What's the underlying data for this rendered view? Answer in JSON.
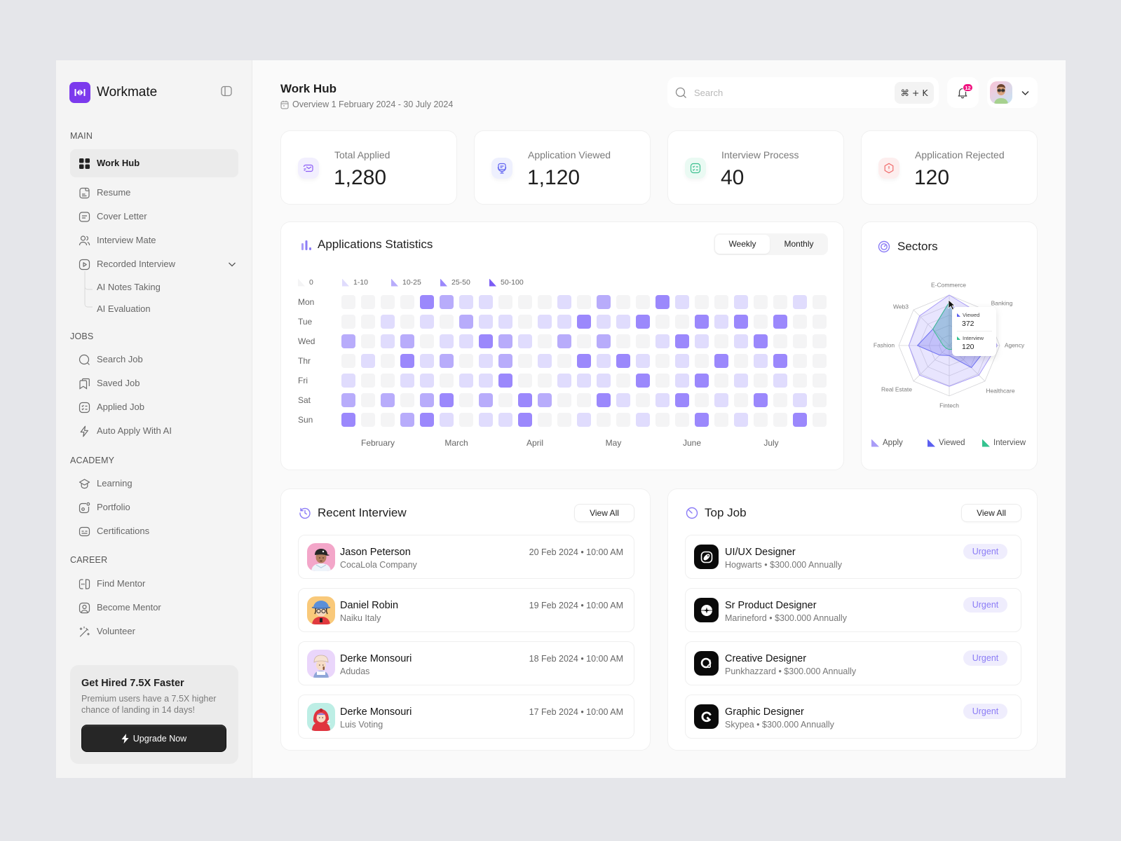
{
  "app": {
    "name": "Workmate"
  },
  "sidebar": {
    "sections": [
      {
        "title": "MAIN",
        "items": [
          {
            "label": "Work Hub",
            "icon": "grid-icon",
            "active": true
          },
          {
            "label": "Resume",
            "icon": "document-icon"
          },
          {
            "label": "Cover Letter",
            "icon": "letter-icon"
          },
          {
            "label": "Interview Mate",
            "icon": "users-icon"
          },
          {
            "label": "Recorded Interview",
            "icon": "play-icon",
            "expanded": true,
            "children": [
              {
                "label": "AI Notes Taking"
              },
              {
                "label": "AI Evaluation"
              }
            ]
          }
        ]
      },
      {
        "title": "JOBS",
        "items": [
          {
            "label": "Search Job",
            "icon": "search-icon"
          },
          {
            "label": "Saved Job",
            "icon": "bookmark-icon"
          },
          {
            "label": "Applied Job",
            "icon": "checklist-icon"
          },
          {
            "label": "Auto Apply With AI",
            "icon": "lightning-icon"
          }
        ]
      },
      {
        "title": "ACADEMY",
        "items": [
          {
            "label": "Learning",
            "icon": "graduation-cap-icon"
          },
          {
            "label": "Portfolio",
            "icon": "portfolio-icon"
          },
          {
            "label": "Certifications",
            "icon": "certificate-icon"
          }
        ]
      },
      {
        "title": "CAREER",
        "items": [
          {
            "label": "Find Mentor",
            "icon": "find-mentor-icon"
          },
          {
            "label": "Become Mentor",
            "icon": "user-square-icon"
          },
          {
            "label": "Volunteer",
            "icon": "magic-wand-icon"
          }
        ]
      }
    ]
  },
  "promo": {
    "title": "Get Hired 7.5X Faster",
    "body": "Premium users have a 7.5X higher chance of landing in 14 days!",
    "button": "Upgrade Now"
  },
  "header": {
    "title": "Work Hub",
    "subtitle": "Overview 1 February 2024 - 30 July 2024",
    "search_placeholder": "Search",
    "shortcut": "⌘ + K",
    "notifications_count": "12"
  },
  "stats": [
    {
      "label": "Total Applied",
      "value": "1,280",
      "icon": "envelope-icon",
      "color": "#8b5cf6",
      "bg": "#f2effe"
    },
    {
      "label": "Application Viewed",
      "value": "1,120",
      "icon": "monitor-icon",
      "color": "#6366f1",
      "bg": "#eef0fe"
    },
    {
      "label": "Interview Process",
      "value": "40",
      "icon": "checklist-icon",
      "color": "#3cbf8f",
      "bg": "#eafaf3"
    },
    {
      "label": "Application Rejected",
      "value": "120",
      "icon": "alert-hexagon-icon",
      "color": "#f06b6b",
      "bg": "#fdeeee"
    }
  ],
  "applications_statistics": {
    "title": "Applications Statistics",
    "tabs": [
      "Weekly",
      "Monthly"
    ],
    "active_tab": "Weekly",
    "legend": [
      "0",
      "1-10",
      "10-25",
      "25-50",
      "50-100"
    ],
    "level_colors": [
      "#f4f4f5",
      "#e0dcfd",
      "#b8acfb",
      "#9b88fc",
      "#7b5cf5"
    ],
    "days": [
      "Mon",
      "Tue",
      "Wed",
      "Thr",
      "Fri",
      "Sat",
      "Sun"
    ],
    "months": [
      "February",
      "March",
      "April",
      "May",
      "June",
      "July"
    ]
  },
  "sectors": {
    "title": "Sectors",
    "axes": [
      "E-Commerce",
      "Banking",
      "Agency",
      "Healthcare",
      "Fintech",
      "Real Estate",
      "Fashion",
      "Web3"
    ],
    "tooltip": {
      "rows": [
        {
          "label": "Viewed",
          "value": "372",
          "color": "#5b5ff0"
        },
        {
          "label": "Interview",
          "value": "120",
          "color": "#34c38f"
        }
      ]
    },
    "legend": [
      {
        "label": "Apply",
        "color": "#a99cf7"
      },
      {
        "label": "Viewed",
        "color": "#5b5ff0"
      },
      {
        "label": "Interview",
        "color": "#34c38f"
      }
    ],
    "series_fill": [
      "rgba(167,155,250,0.26)",
      "rgba(99,102,241,0.28)",
      "rgba(52,195,143,0.22)"
    ],
    "series_stroke": [
      "#a99cf7",
      "#6d6ff2",
      "#3cbf90"
    ]
  },
  "recent_interview": {
    "title": "Recent Interview",
    "view_all": "View All",
    "separator": " • ",
    "items": [
      {
        "name": "Jason Peterson",
        "company": "CocaLola Company",
        "date": "20 Feb 2024",
        "time": "10:00 AM"
      },
      {
        "name": "Daniel Robin",
        "company": "Naiku Italy",
        "date": "19 Feb 2024",
        "time": "10:00 AM"
      },
      {
        "name": "Derke Monsouri",
        "company": "Adudas",
        "date": "18 Feb 2024",
        "time": "10:00 AM"
      },
      {
        "name": "Derke Monsouri",
        "company": "Luis Voting",
        "date": "17 Feb 2024",
        "time": "10:00 AM"
      }
    ]
  },
  "top_job": {
    "title": "Top Job",
    "view_all": "View All",
    "separator": " • ",
    "items": [
      {
        "title": "UI/UX Designer",
        "company": "Hogwarts",
        "salary": "$300.000 Annually",
        "badge": "Urgent"
      },
      {
        "title": "Sr Product Designer",
        "company": "Marineford",
        "salary": "$300.000 Annually",
        "badge": "Urgent"
      },
      {
        "title": "Creative Designer",
        "company": "Punkhazzard",
        "salary": "$300.000 Annually",
        "badge": "Urgent"
      },
      {
        "title": "Graphic Designer",
        "company": "Skypea",
        "salary": "$300.000 Annually",
        "badge": "Urgent"
      }
    ]
  },
  "colors": {
    "brand": "#7c3aed",
    "accent": "#8b7cf6",
    "badge": "#f0127f",
    "urgent_bg": "#efedfd",
    "urgent_text": "#8b7cf6"
  },
  "chart_data": [
    {
      "type": "heatmap",
      "title": "Applications Statistics",
      "y_categories": [
        "Mon",
        "Tue",
        "Wed",
        "Thr",
        "Fri",
        "Sat",
        "Sun"
      ],
      "x_labels": [
        "February",
        "March",
        "April",
        "May",
        "June",
        "July"
      ],
      "columns": 25,
      "legend_bins": [
        "0",
        "1-10",
        "10-25",
        "25-50",
        "50-100"
      ],
      "values": [
        [
          0,
          0,
          0,
          0,
          3,
          2,
          1,
          1,
          0,
          0,
          0,
          1,
          0,
          2,
          0,
          0,
          3,
          1,
          0,
          0,
          1,
          0,
          0,
          1,
          0
        ],
        [
          0,
          0,
          1,
          0,
          1,
          0,
          2,
          1,
          1,
          0,
          1,
          1,
          3,
          1,
          1,
          3,
          0,
          0,
          3,
          1,
          3,
          0,
          3,
          0,
          0
        ],
        [
          2,
          0,
          1,
          2,
          0,
          1,
          1,
          3,
          2,
          1,
          0,
          2,
          0,
          2,
          0,
          0,
          1,
          3,
          1,
          0,
          1,
          3,
          0,
          0,
          0
        ],
        [
          0,
          1,
          0,
          3,
          1,
          2,
          0,
          1,
          2,
          0,
          1,
          0,
          3,
          1,
          3,
          1,
          0,
          1,
          0,
          3,
          0,
          1,
          3,
          0,
          0
        ],
        [
          1,
          0,
          0,
          1,
          1,
          0,
          1,
          1,
          3,
          0,
          0,
          1,
          1,
          1,
          0,
          3,
          0,
          1,
          3,
          0,
          1,
          0,
          1,
          0,
          0
        ],
        [
          2,
          0,
          2,
          0,
          2,
          3,
          0,
          2,
          0,
          3,
          2,
          0,
          0,
          3,
          1,
          0,
          1,
          3,
          0,
          1,
          0,
          3,
          0,
          1,
          0
        ],
        [
          3,
          0,
          0,
          2,
          3,
          1,
          0,
          1,
          1,
          3,
          0,
          0,
          1,
          0,
          0,
          1,
          0,
          0,
          3,
          0,
          1,
          0,
          0,
          3,
          0
        ]
      ]
    },
    {
      "type": "radar",
      "title": "Sectors",
      "axes": [
        "E-Commerce",
        "Banking",
        "Agency",
        "Healthcare",
        "Fintech",
        "Real Estate",
        "Fashion",
        "Web3"
      ],
      "rings": 5,
      "rlim": [
        0,
        100
      ],
      "series": [
        {
          "name": "Apply",
          "values": [
            100,
            88,
            95,
            83,
            81,
            83,
            80,
            83
          ]
        },
        {
          "name": "Viewed",
          "values": [
            86,
            55,
            78,
            62,
            20,
            27,
            63,
            46
          ]
        },
        {
          "name": "Interview",
          "values": [
            86,
            40,
            15,
            10,
            8,
            8,
            12,
            46
          ]
        }
      ],
      "tooltip": {
        "axis": "E-Commerce",
        "Viewed": 372,
        "Interview": 120
      },
      "legend": [
        "Apply",
        "Viewed",
        "Interview"
      ],
      "legend_position": "bottom"
    }
  ]
}
